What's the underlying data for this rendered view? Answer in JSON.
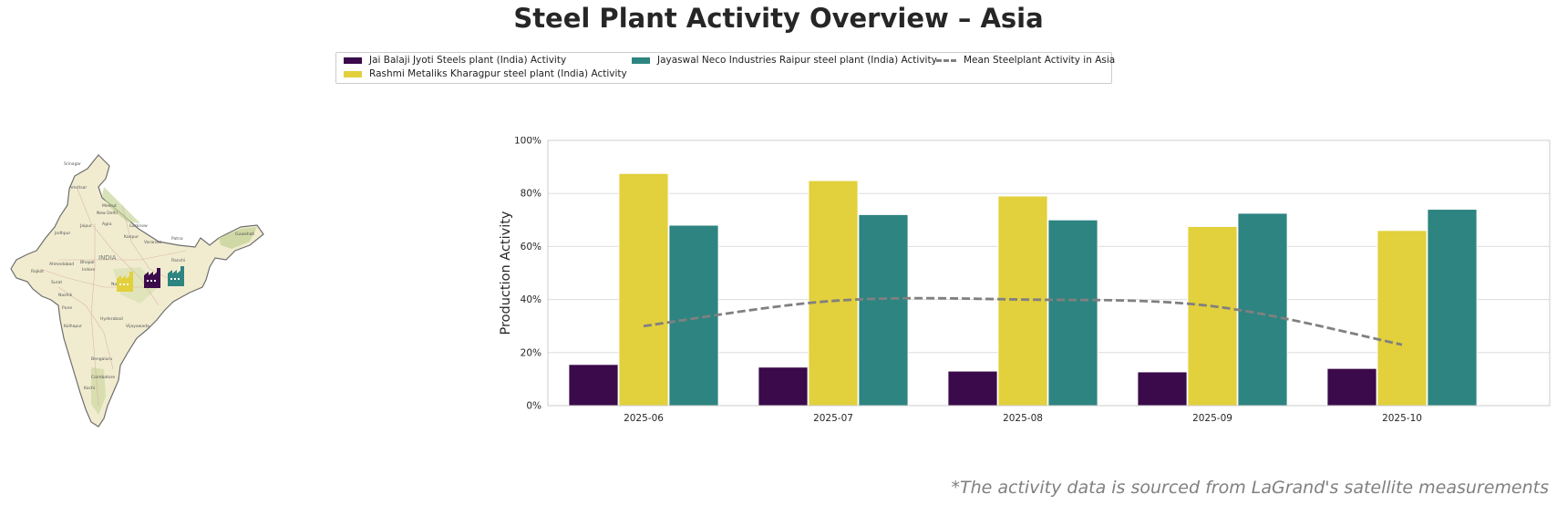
{
  "title": "Steel Plant Activity Overview – Asia",
  "footnote": "*The activity data is sourced from LaGrand's satellite measurements",
  "map": {
    "country_label": "INDIA",
    "cities": [
      "Srinagar",
      "Amritsar",
      "Meerut",
      "New Delhi",
      "Jaipur",
      "Agra",
      "Lucknow",
      "Jodhpur",
      "Kanpur",
      "Varanasi",
      "Patna",
      "Guwahati",
      "Ahmedabad",
      "Bhopal",
      "Ranchi",
      "Rajkot",
      "Indore",
      "Surat",
      "Nagpur",
      "Nashik",
      "Pune",
      "Hyderabad",
      "Kolhapur",
      "Vijayawada",
      "Bengaluru",
      "Coimbatore",
      "Kochi"
    ]
  },
  "colors": {
    "jai": "#3b0a4a",
    "rashmi": "#e2d03c",
    "jayaswal": "#2e8480",
    "mean": "#808080",
    "grid": "#dddddd",
    "land": "#f1ecd0"
  },
  "chart_data": {
    "type": "bar",
    "title": "",
    "xlabel": "",
    "ylabel": "Production Activity",
    "ylim": [
      0,
      100
    ],
    "yticks": [
      "0%",
      "20%",
      "40%",
      "60%",
      "80%",
      "100%"
    ],
    "grid": true,
    "legend_position": "top-center",
    "categories": [
      "2025-06",
      "2025-07",
      "2025-08",
      "2025-09",
      "2025-10"
    ],
    "series": [
      {
        "name": "Jai Balaji Jyoti Steels plant (India) Activity",
        "type": "bar",
        "color_key": "jai",
        "values": [
          15.5,
          14.5,
          13,
          12.7,
          14
        ]
      },
      {
        "name": "Rashmi Metaliks Kharagpur steel plant (India) Activity",
        "type": "bar",
        "color_key": "rashmi",
        "values": [
          87.5,
          84.8,
          79,
          67.5,
          66
        ]
      },
      {
        "name": "Jayaswal Neco Industries Raipur steel plant (India) Activity",
        "type": "bar",
        "color_key": "jayaswal",
        "values": [
          68,
          72,
          70,
          72.5,
          74
        ]
      },
      {
        "name": "Mean Steelplant Activity in Asia",
        "type": "line",
        "color_key": "mean",
        "values": [
          30,
          39.5,
          40,
          37.5,
          23
        ]
      }
    ]
  }
}
